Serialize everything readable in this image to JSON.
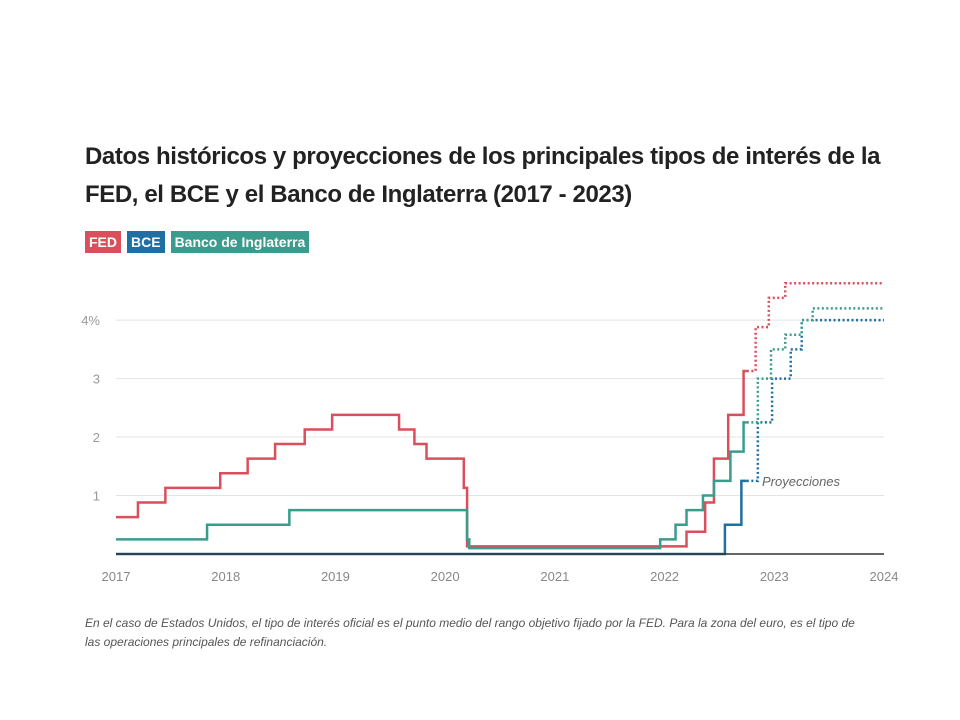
{
  "title": "Datos históricos y proyecciones de los principales tipos de interés de la FED, el BCE y el Banco de Inglaterra (2017 - 2023)",
  "legend": [
    {
      "label": "FED",
      "color": "#d94f5c"
    },
    {
      "label": "BCE",
      "color": "#1f6fa3"
    },
    {
      "label": "Banco de Inglaterra",
      "color": "#3a9c8c"
    }
  ],
  "footnote": "En el caso de Estados Unidos, el tipo de interés oficial es el punto medio del rango objetivo fijado por la FED. Para la zona del euro, es el tipo de las operaciones principales de refinanciación.",
  "chart_data": {
    "type": "line",
    "xlabel": "",
    "ylabel": "",
    "xlim": [
      2017,
      2024
    ],
    "ylim": [
      0,
      4.6
    ],
    "x_ticks": [
      2017,
      2018,
      2019,
      2020,
      2021,
      2022,
      2023,
      2024
    ],
    "y_ticks": [
      1,
      2,
      3,
      4
    ],
    "y_tick_labels": [
      "1",
      "2",
      "3",
      "4%"
    ],
    "grid": true,
    "legend_position": "top-left",
    "annotation": "Proyecciones",
    "series": [
      {
        "name": "FED",
        "color": "#d94f5c",
        "step": true,
        "historical": [
          [
            2017.0,
            0.63
          ],
          [
            2017.2,
            0.88
          ],
          [
            2017.45,
            1.13
          ],
          [
            2017.95,
            1.38
          ],
          [
            2018.2,
            1.63
          ],
          [
            2018.45,
            1.88
          ],
          [
            2018.72,
            2.13
          ],
          [
            2018.97,
            2.38
          ],
          [
            2019.58,
            2.13
          ],
          [
            2019.72,
            1.88
          ],
          [
            2019.83,
            1.63
          ],
          [
            2020.17,
            1.13
          ],
          [
            2020.2,
            0.13
          ],
          [
            2022.2,
            0.38
          ],
          [
            2022.37,
            0.88
          ],
          [
            2022.45,
            1.63
          ],
          [
            2022.58,
            2.38
          ],
          [
            2022.72,
            3.13
          ],
          [
            2022.75,
            3.13
          ]
        ],
        "projection": [
          [
            2022.75,
            3.13
          ],
          [
            2022.83,
            3.88
          ],
          [
            2022.95,
            4.38
          ],
          [
            2023.1,
            4.63
          ],
          [
            2024.0,
            4.63
          ]
        ]
      },
      {
        "name": "BCE",
        "color": "#1f6fa3",
        "step": true,
        "historical": [
          [
            2017.0,
            0.0
          ],
          [
            2022.55,
            0.0
          ],
          [
            2022.55,
            0.5
          ],
          [
            2022.7,
            1.25
          ],
          [
            2022.75,
            1.25
          ]
        ],
        "projection": [
          [
            2022.75,
            1.25
          ],
          [
            2022.85,
            2.25
          ],
          [
            2022.98,
            3.0
          ],
          [
            2023.15,
            3.5
          ],
          [
            2023.25,
            4.0
          ],
          [
            2024.0,
            4.0
          ]
        ]
      },
      {
        "name": "Banco de Inglaterra",
        "color": "#3a9c8c",
        "step": true,
        "historical": [
          [
            2017.0,
            0.25
          ],
          [
            2017.83,
            0.5
          ],
          [
            2018.58,
            0.75
          ],
          [
            2020.2,
            0.25
          ],
          [
            2020.22,
            0.1
          ],
          [
            2021.96,
            0.25
          ],
          [
            2022.1,
            0.5
          ],
          [
            2022.2,
            0.75
          ],
          [
            2022.35,
            1.0
          ],
          [
            2022.45,
            1.25
          ],
          [
            2022.6,
            1.75
          ],
          [
            2022.72,
            2.25
          ],
          [
            2022.75,
            2.25
          ]
        ],
        "projection": [
          [
            2022.75,
            2.25
          ],
          [
            2022.85,
            3.0
          ],
          [
            2022.97,
            3.5
          ],
          [
            2023.1,
            3.75
          ],
          [
            2023.25,
            4.0
          ],
          [
            2023.35,
            4.2
          ],
          [
            2024.0,
            4.2
          ]
        ]
      }
    ]
  }
}
